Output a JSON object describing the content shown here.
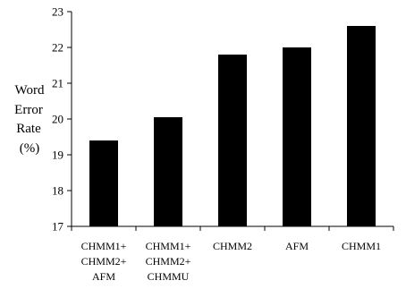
{
  "chart_data": {
    "type": "bar",
    "title": "",
    "ylabel_lines": [
      "Word",
      "Error",
      "Rate",
      "(%)"
    ],
    "xlabel": "",
    "ylim": [
      17,
      23
    ],
    "yticks": [
      17,
      18,
      19,
      20,
      21,
      22,
      23
    ],
    "grid": false,
    "legend": "none",
    "bar_color": "#000000",
    "categories": [
      [
        "CHMM1+",
        "CHMM2+",
        "AFM"
      ],
      [
        "CHMM1+",
        "CHMM2+",
        "CHMMU"
      ],
      [
        "CHMM2"
      ],
      [
        "AFM"
      ],
      [
        "CHMM1"
      ]
    ],
    "values": [
      19.4,
      20.05,
      21.8,
      22.0,
      22.6
    ]
  }
}
